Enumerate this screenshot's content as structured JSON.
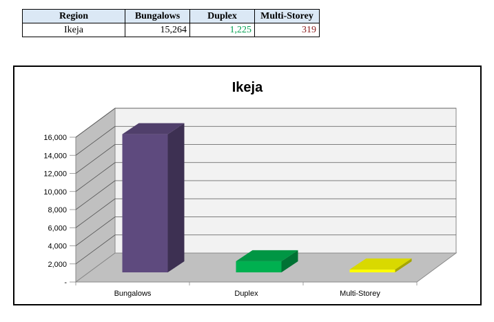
{
  "table": {
    "headers": [
      "Region",
      "Bungalows",
      "Duplex",
      "Multi-Storey"
    ],
    "row": {
      "region": "Ikeja",
      "bungalows": "15,264",
      "duplex": "1,225",
      "multi_storey": "319"
    },
    "colors": {
      "header_bg": "#dbe8f5",
      "duplex_text": "#00a050",
      "multi_storey_text": "#8b1a1a"
    }
  },
  "chart_data": {
    "type": "bar",
    "style": "3d-column",
    "title": "Ikeja",
    "categories": [
      "Bungalows",
      "Duplex",
      "Multi-Storey"
    ],
    "values": [
      15264,
      1225,
      319
    ],
    "colors": [
      "#5e4a7e",
      "#00b050",
      "#ffff00"
    ],
    "ylim": [
      0,
      16000
    ],
    "y_tick_values": [
      0,
      2000,
      4000,
      6000,
      8000,
      10000,
      12000,
      14000,
      16000
    ],
    "y_tick_labels": [
      "-",
      "2,000",
      "4,000",
      "6,000",
      "8,000",
      "10,000",
      "12,000",
      "14,000",
      "16,000"
    ],
    "xlabel": "",
    "ylabel": "",
    "grid": true,
    "legend": "none"
  }
}
